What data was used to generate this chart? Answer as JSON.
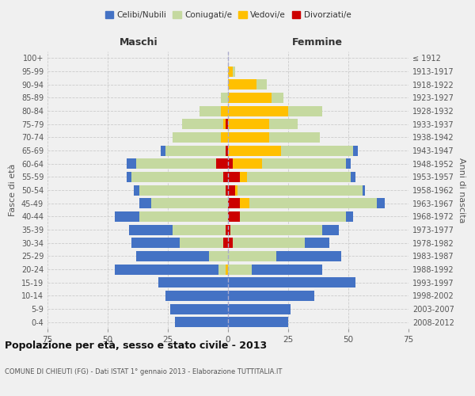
{
  "age_groups": [
    "0-4",
    "5-9",
    "10-14",
    "15-19",
    "20-24",
    "25-29",
    "30-34",
    "35-39",
    "40-44",
    "45-49",
    "50-54",
    "55-59",
    "60-64",
    "65-69",
    "70-74",
    "75-79",
    "80-84",
    "85-89",
    "90-94",
    "95-99",
    "100+"
  ],
  "birth_years": [
    "2008-2012",
    "2003-2007",
    "1998-2002",
    "1993-1997",
    "1988-1992",
    "1983-1987",
    "1978-1982",
    "1973-1977",
    "1968-1972",
    "1963-1967",
    "1958-1962",
    "1953-1957",
    "1948-1952",
    "1943-1947",
    "1938-1942",
    "1933-1937",
    "1928-1932",
    "1923-1927",
    "1918-1922",
    "1913-1917",
    "≤ 1912"
  ],
  "male": {
    "celibi": [
      22,
      24,
      26,
      29,
      43,
      30,
      20,
      18,
      10,
      5,
      2,
      2,
      4,
      2,
      0,
      0,
      0,
      0,
      0,
      0,
      0
    ],
    "coniugati": [
      0,
      0,
      0,
      0,
      3,
      8,
      18,
      22,
      37,
      32,
      36,
      38,
      33,
      25,
      20,
      17,
      9,
      3,
      0,
      0,
      0
    ],
    "vedovi": [
      0,
      0,
      0,
      0,
      1,
      0,
      0,
      0,
      0,
      0,
      0,
      0,
      0,
      0,
      3,
      1,
      3,
      0,
      0,
      0,
      0
    ],
    "divorziati": [
      0,
      0,
      0,
      0,
      0,
      0,
      2,
      1,
      0,
      0,
      1,
      2,
      5,
      1,
      0,
      1,
      0,
      0,
      0,
      0,
      0
    ]
  },
  "female": {
    "nubili": [
      25,
      26,
      36,
      53,
      29,
      27,
      10,
      7,
      3,
      3,
      1,
      2,
      2,
      2,
      0,
      0,
      0,
      0,
      0,
      0,
      0
    ],
    "coniugate": [
      0,
      0,
      0,
      0,
      10,
      20,
      30,
      38,
      44,
      53,
      52,
      43,
      35,
      30,
      21,
      12,
      14,
      5,
      4,
      1,
      0
    ],
    "vedove": [
      0,
      0,
      0,
      0,
      0,
      0,
      0,
      0,
      0,
      4,
      1,
      3,
      12,
      22,
      17,
      17,
      25,
      18,
      12,
      2,
      0
    ],
    "divorziate": [
      0,
      0,
      0,
      0,
      0,
      0,
      2,
      1,
      5,
      5,
      3,
      5,
      2,
      0,
      0,
      0,
      0,
      0,
      0,
      0,
      0
    ]
  },
  "colors": {
    "celibi": "#4472c4",
    "coniugati": "#c5d9a0",
    "vedovi": "#ffc000",
    "divorziati": "#cc0000"
  },
  "xlim": 75,
  "title": "Popolazione per età, sesso e stato civile - 2013",
  "subtitle": "COMUNE DI CHIEUTI (FG) - Dati ISTAT 1° gennaio 2013 - Elaborazione TUTTITALIA.IT",
  "ylabel_left": "Fasce di età",
  "ylabel_right": "Anni di nascita",
  "xlabel_left": "Maschi",
  "xlabel_right": "Femmine",
  "legend_labels": [
    "Celibi/Nubili",
    "Coniugati/e",
    "Vedovi/e",
    "Divorziati/e"
  ],
  "background_color": "#f0f0f0"
}
